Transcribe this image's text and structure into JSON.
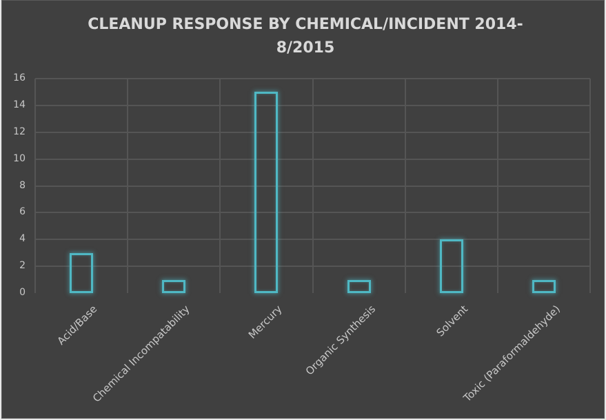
{
  "chart_data": {
    "type": "bar",
    "title": "CLEANUP RESPONSE BY CHEMICAL/INCIDENT 2014-8/2015",
    "title_lines": [
      "CLEANUP RESPONSE BY CHEMICAL/INCIDENT 2014-",
      "8/2015"
    ],
    "categories": [
      "Acid/Base",
      "Chemical Incompatability",
      "Mercury",
      "Organic Synthesis",
      "Solvent",
      "Toxic (Paraformaldehyde)"
    ],
    "values": [
      3,
      1,
      15,
      1,
      4,
      1
    ],
    "xlabel": "",
    "ylabel": "",
    "ylim": [
      0,
      16
    ],
    "yticks": [
      "0",
      "2",
      "4",
      "6",
      "8",
      "10",
      "12",
      "14",
      "16"
    ],
    "grid": true,
    "legend": "none",
    "colors": {
      "background": "#404040",
      "bar_outline": "#4fb8c4",
      "grid": "#555555",
      "text": "#c8c8c8",
      "title": "#d9d9d9"
    }
  }
}
